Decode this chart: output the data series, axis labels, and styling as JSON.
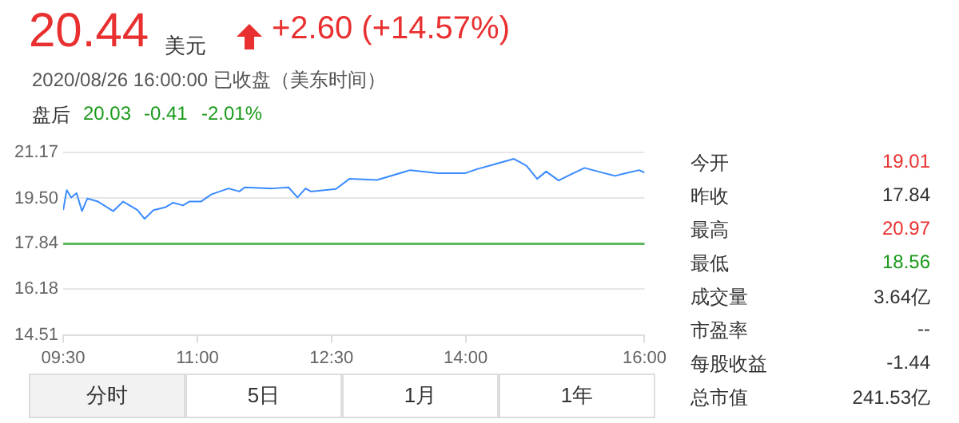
{
  "chart_data": {
    "type": "line",
    "title": "20.44",
    "annotations": [
      "美元",
      "+2.60 (+14.57%)",
      "2020/08/26 16:00:00 已收盘（美东时间）",
      "盘后",
      "20.03",
      "-0.41",
      "-2.01%",
      "今开",
      "19.01",
      "昨收",
      "17.84",
      "最高",
      "20.97",
      "最低",
      "18.56",
      "成交量",
      "3.64亿",
      "市盈率",
      "--",
      "每股收益",
      "-1.44",
      "总市值",
      "241.53亿",
      "分时",
      "5日",
      "1月",
      "1年"
    ],
    "x": [
      9.5,
      9.54,
      9.59,
      9.65,
      9.71,
      9.77,
      9.89,
      10.06,
      10.17,
      10.33,
      10.41,
      10.51,
      10.64,
      10.73,
      10.84,
      10.91,
      11.04,
      11.16,
      11.35,
      11.47,
      11.53,
      11.84,
      12.02,
      12.12,
      12.21,
      12.27,
      12.55,
      12.7,
      13.01,
      13.38,
      13.69,
      14.0,
      14.12,
      14.31,
      14.54,
      14.68,
      14.8,
      14.9,
      15.04,
      15.17,
      15.33,
      15.48,
      15.67,
      15.79,
      15.94,
      16.0
    ],
    "series": [
      {
        "color": "#3a8bff",
        "values": [
          19.07,
          19.8,
          19.53,
          19.69,
          19.03,
          19.49,
          19.38,
          19.03,
          19.38,
          19.07,
          18.75,
          19.07,
          19.17,
          19.34,
          19.24,
          19.38,
          19.38,
          19.65,
          19.86,
          19.75,
          19.9,
          19.86,
          19.9,
          19.53,
          19.86,
          19.75,
          19.84,
          20.21,
          20.17,
          20.53,
          20.42,
          20.42,
          20.56,
          20.73,
          20.94,
          20.69,
          20.21,
          20.48,
          20.15,
          20.36,
          20.61,
          20.48,
          20.32,
          20.42,
          20.53,
          20.44
        ]
      }
    ],
    "xlim": [
      9.5,
      16
    ],
    "xticks": [
      {
        "value": 9.5,
        "label": "09:30"
      },
      {
        "value": 11,
        "label": "11:00"
      },
      {
        "value": 12.5,
        "label": "12:30"
      },
      {
        "value": 14,
        "label": "14:00"
      },
      {
        "value": 16,
        "label": "16:00"
      }
    ],
    "ylim": [
      14.51,
      21.17
    ],
    "yticks": [
      14.51,
      16.18,
      17.84,
      {
        "value": 19.5,
        "label": "19.50"
      },
      21.17
    ],
    "ref_lines": [
      {
        "axis": "y",
        "value": 17.84,
        "color": "#5cb85c"
      }
    ],
    "grid": "y",
    "legend": false,
    "marker": "none",
    "line_style": "solid"
  }
}
